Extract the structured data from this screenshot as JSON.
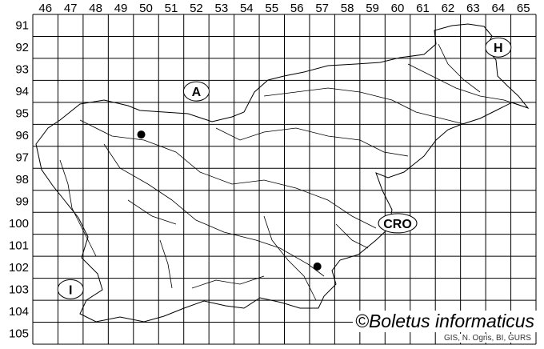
{
  "map": {
    "grid": {
      "columns": [
        "46",
        "47",
        "48",
        "49",
        "50",
        "51",
        "52",
        "53",
        "54",
        "55",
        "56",
        "57",
        "58",
        "59",
        "60",
        "61",
        "62",
        "63",
        "64",
        "65"
      ],
      "rows": [
        "91",
        "92",
        "93",
        "94",
        "95",
        "96",
        "97",
        "98",
        "99",
        "100",
        "101",
        "102",
        "103",
        "104",
        "105"
      ]
    },
    "records": [
      {
        "col": "50",
        "row": "96"
      },
      {
        "col": "57",
        "row": "102"
      }
    ],
    "country_labels": [
      {
        "label": "A",
        "col": "52",
        "row": "94"
      },
      {
        "label": "H",
        "col": "64",
        "row": "92"
      },
      {
        "label": "CRO",
        "col": "60",
        "row": "100"
      },
      {
        "label": "I",
        "col": "47",
        "row": "103"
      }
    ],
    "credit": "©Boletus informaticus",
    "source": "GIS, N. Ogris, BI, GURS",
    "colors": {
      "lines": "#000000",
      "background": "#ffffff",
      "record_dot": "#000000"
    }
  }
}
